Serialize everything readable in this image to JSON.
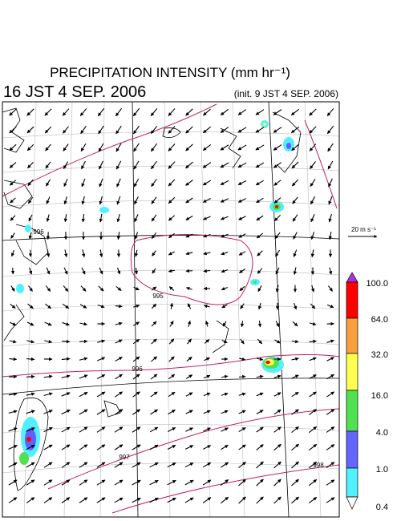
{
  "header": {
    "title": "PRECIPITATION INTENSITY (mm hr⁻¹)",
    "valid_time": "16 JST 4 SEP. 2006",
    "init_time": "(init. 9 JST 4 SEP. 2006)"
  },
  "vector_scale": "20 m s⁻¹",
  "colorbar": {
    "labels": [
      "100.0",
      "64.0",
      "32.0",
      "16.0",
      "4.0",
      "1.0",
      "0.4"
    ]
  },
  "contour_labels": [
    "996",
    "995",
    "996",
    "997",
    "998"
  ]
}
